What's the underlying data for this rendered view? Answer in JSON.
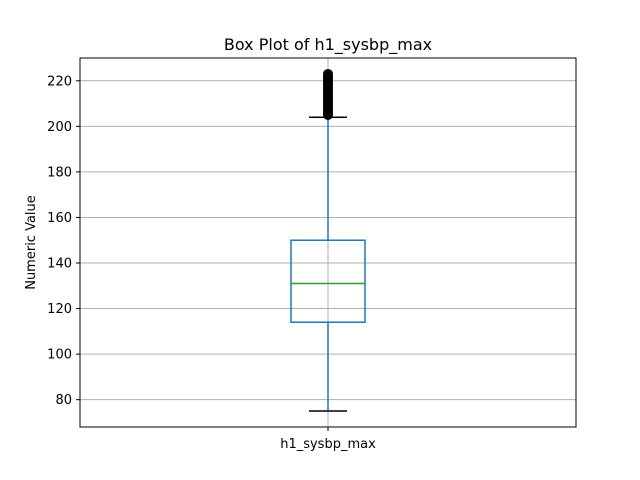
{
  "chart_data": {
    "type": "box",
    "title": "Box Plot of h1_sysbp_max",
    "ylabel": "Numeric Value",
    "xlabel": "",
    "categories": [
      "h1_sysbp_max"
    ],
    "ylim": [
      68,
      230
    ],
    "yticks": [
      80,
      100,
      120,
      140,
      160,
      180,
      200,
      220
    ],
    "grid": true,
    "boxes": [
      {
        "name": "h1_sysbp_max",
        "whisker_low": 75,
        "q1": 114,
        "median": 131,
        "q3": 150,
        "whisker_high": 204,
        "outliers": [
          205,
          206,
          207,
          208,
          209,
          210,
          211,
          212,
          213,
          214,
          215,
          216,
          217,
          218,
          219,
          220,
          221,
          222,
          223
        ]
      }
    ],
    "colors": {
      "box": "#1f77b4",
      "median": "#2ca02c",
      "whisker_cap": "#000000",
      "outlier": "#000000",
      "grid": "#b0b0b0"
    }
  }
}
